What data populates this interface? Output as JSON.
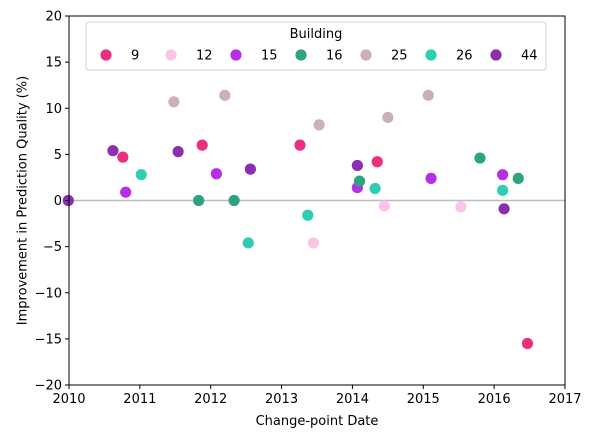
{
  "chart_data": {
    "type": "scatter",
    "xlabel": "Change-point Date",
    "ylabel": "Improvement in Prediction Quality (%)",
    "xlim": [
      2010,
      2017
    ],
    "ylim": [
      -20,
      20
    ],
    "xticks": [
      2010,
      2011,
      2012,
      2013,
      2014,
      2015,
      2016,
      2017
    ],
    "yticks": [
      -20,
      -15,
      -10,
      -5,
      0,
      5,
      10,
      15,
      20
    ],
    "reference_line_y": 0,
    "grid": false,
    "legend": {
      "title": "Building",
      "placement": "top-center"
    },
    "series": [
      {
        "name": "9",
        "color": "#e8307e",
        "points": [
          [
            2010.76,
            4.7
          ],
          [
            2011.88,
            6.0
          ],
          [
            2013.26,
            6.0
          ],
          [
            2014.35,
            4.2
          ],
          [
            2016.47,
            -15.5
          ]
        ]
      },
      {
        "name": "12",
        "color": "#fbc5e8",
        "points": [
          [
            2013.45,
            -4.6
          ],
          [
            2014.45,
            -0.6
          ],
          [
            2015.53,
            -0.7
          ]
        ]
      },
      {
        "name": "15",
        "color": "#b72ee8",
        "points": [
          [
            2010.8,
            0.9
          ],
          [
            2012.08,
            2.9
          ],
          [
            2014.07,
            1.4
          ],
          [
            2015.11,
            2.4
          ],
          [
            2016.12,
            2.8
          ]
        ]
      },
      {
        "name": "16",
        "color": "#2ea382",
        "points": [
          [
            2011.83,
            0.0
          ],
          [
            2012.33,
            0.0
          ],
          [
            2014.1,
            2.1
          ],
          [
            2015.8,
            4.6
          ],
          [
            2016.34,
            2.4
          ]
        ]
      },
      {
        "name": "25",
        "color": "#c9b1b5",
        "points": [
          [
            2011.48,
            10.7
          ],
          [
            2012.2,
            11.4
          ],
          [
            2013.53,
            8.2
          ],
          [
            2014.5,
            9.0
          ],
          [
            2015.07,
            11.4
          ]
        ]
      },
      {
        "name": "26",
        "color": "#2ecfb1",
        "points": [
          [
            2011.02,
            2.8
          ],
          [
            2012.53,
            -4.6
          ],
          [
            2013.37,
            -1.6
          ],
          [
            2014.32,
            1.3
          ],
          [
            2016.12,
            1.1
          ]
        ]
      },
      {
        "name": "44",
        "color": "#8c2fae",
        "points": [
          [
            2009.99,
            0.0
          ],
          [
            2010.62,
            5.4
          ],
          [
            2011.54,
            5.3
          ],
          [
            2012.56,
            3.4
          ],
          [
            2014.07,
            3.8
          ],
          [
            2016.14,
            -0.9
          ]
        ]
      }
    ]
  }
}
